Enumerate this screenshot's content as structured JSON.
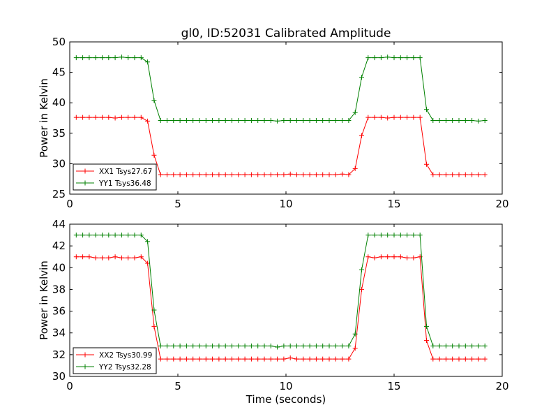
{
  "figure": {
    "title": "gl0, ID:52031 Calibrated Amplitude",
    "xlabel": "Time (seconds)"
  },
  "chart_data": [
    {
      "type": "line",
      "title": "gl0, ID:52031 Calibrated Amplitude",
      "xlabel": "",
      "ylabel": "Power in Kelvin",
      "xlim": [
        0,
        20
      ],
      "ylim": [
        25,
        50
      ],
      "xticks": [
        0,
        5,
        10,
        15,
        20
      ],
      "yticks": [
        25,
        30,
        35,
        40,
        45,
        50
      ],
      "grid": false,
      "legend_position": "lower-left",
      "series": [
        {
          "name": "XX1 Tsys27.67",
          "color": "#ff0000",
          "x": [
            0.3,
            0.6,
            0.9,
            1.2,
            1.5,
            1.8,
            2.1,
            2.4,
            2.7,
            3.0,
            3.3,
            3.6,
            3.9,
            4.2,
            4.5,
            4.8,
            5.1,
            5.4,
            5.7,
            6.0,
            6.3,
            6.6,
            6.9,
            7.2,
            7.5,
            7.8,
            8.1,
            8.4,
            8.7,
            9.0,
            9.3,
            9.6,
            9.9,
            10.2,
            10.5,
            10.8,
            11.1,
            11.4,
            11.7,
            12.0,
            12.3,
            12.6,
            12.9,
            13.2,
            13.5,
            13.8,
            14.1,
            14.4,
            14.7,
            15.0,
            15.3,
            15.6,
            15.9,
            16.2,
            16.5,
            16.8,
            17.1,
            17.4,
            17.7,
            18.0,
            18.3,
            18.6,
            18.9,
            19.2
          ],
          "y": [
            37.6,
            37.6,
            37.6,
            37.6,
            37.6,
            37.6,
            37.5,
            37.6,
            37.6,
            37.6,
            37.6,
            37.0,
            31.4,
            28.2,
            28.2,
            28.2,
            28.2,
            28.2,
            28.2,
            28.2,
            28.2,
            28.2,
            28.2,
            28.2,
            28.2,
            28.2,
            28.2,
            28.2,
            28.2,
            28.2,
            28.2,
            28.2,
            28.2,
            28.3,
            28.2,
            28.2,
            28.2,
            28.2,
            28.2,
            28.2,
            28.2,
            28.3,
            28.2,
            29.2,
            34.6,
            37.6,
            37.6,
            37.6,
            37.5,
            37.6,
            37.6,
            37.6,
            37.6,
            37.6,
            29.9,
            28.2,
            28.2,
            28.2,
            28.2,
            28.2,
            28.2,
            28.2,
            28.2,
            28.2
          ]
        },
        {
          "name": "YY1 Tsys36.48",
          "color": "#008000",
          "x": [
            0.3,
            0.6,
            0.9,
            1.2,
            1.5,
            1.8,
            2.1,
            2.4,
            2.7,
            3.0,
            3.3,
            3.6,
            3.9,
            4.2,
            4.5,
            4.8,
            5.1,
            5.4,
            5.7,
            6.0,
            6.3,
            6.6,
            6.9,
            7.2,
            7.5,
            7.8,
            8.1,
            8.4,
            8.7,
            9.0,
            9.3,
            9.6,
            9.9,
            10.2,
            10.5,
            10.8,
            11.1,
            11.4,
            11.7,
            12.0,
            12.3,
            12.6,
            12.9,
            13.2,
            13.5,
            13.8,
            14.1,
            14.4,
            14.7,
            15.0,
            15.3,
            15.6,
            15.9,
            16.2,
            16.5,
            16.8,
            17.1,
            17.4,
            17.7,
            18.0,
            18.3,
            18.6,
            18.9,
            19.2
          ],
          "y": [
            47.4,
            47.4,
            47.4,
            47.4,
            47.4,
            47.4,
            47.4,
            47.5,
            47.4,
            47.4,
            47.4,
            46.7,
            40.4,
            37.1,
            37.1,
            37.1,
            37.1,
            37.1,
            37.1,
            37.1,
            37.1,
            37.1,
            37.1,
            37.1,
            37.1,
            37.1,
            37.1,
            37.1,
            37.1,
            37.1,
            37.1,
            37.0,
            37.1,
            37.1,
            37.1,
            37.1,
            37.1,
            37.1,
            37.1,
            37.1,
            37.1,
            37.1,
            37.1,
            38.4,
            44.2,
            47.4,
            47.4,
            47.4,
            47.5,
            47.4,
            47.4,
            47.4,
            47.4,
            47.4,
            38.9,
            37.1,
            37.1,
            37.1,
            37.1,
            37.1,
            37.1,
            37.1,
            37.0,
            37.1
          ]
        }
      ]
    },
    {
      "type": "line",
      "title": "",
      "xlabel": "Time (seconds)",
      "ylabel": "Power in Kelvin",
      "xlim": [
        0,
        20
      ],
      "ylim": [
        30,
        44
      ],
      "xticks": [
        0,
        5,
        10,
        15,
        20
      ],
      "yticks": [
        30,
        32,
        34,
        36,
        38,
        40,
        42,
        44
      ],
      "grid": false,
      "legend_position": "lower-left",
      "series": [
        {
          "name": "XX2 Tsys30.99",
          "color": "#ff0000",
          "x": [
            0.3,
            0.6,
            0.9,
            1.2,
            1.5,
            1.8,
            2.1,
            2.4,
            2.7,
            3.0,
            3.3,
            3.6,
            3.9,
            4.2,
            4.5,
            4.8,
            5.1,
            5.4,
            5.7,
            6.0,
            6.3,
            6.6,
            6.9,
            7.2,
            7.5,
            7.8,
            8.1,
            8.4,
            8.7,
            9.0,
            9.3,
            9.6,
            9.9,
            10.2,
            10.5,
            10.8,
            11.1,
            11.4,
            11.7,
            12.0,
            12.3,
            12.6,
            12.9,
            13.2,
            13.5,
            13.8,
            14.1,
            14.4,
            14.7,
            15.0,
            15.3,
            15.6,
            15.9,
            16.2,
            16.5,
            16.8,
            17.1,
            17.4,
            17.7,
            18.0,
            18.3,
            18.6,
            18.9,
            19.2
          ],
          "y": [
            41.0,
            41.0,
            41.0,
            40.9,
            40.9,
            40.9,
            41.0,
            40.9,
            40.9,
            40.9,
            41.0,
            40.4,
            34.6,
            31.6,
            31.6,
            31.6,
            31.6,
            31.6,
            31.6,
            31.6,
            31.6,
            31.6,
            31.6,
            31.6,
            31.6,
            31.6,
            31.6,
            31.6,
            31.6,
            31.6,
            31.6,
            31.6,
            31.6,
            31.7,
            31.6,
            31.6,
            31.6,
            31.6,
            31.6,
            31.6,
            31.6,
            31.6,
            31.6,
            32.6,
            38.0,
            41.0,
            40.9,
            41.0,
            41.0,
            41.0,
            41.0,
            40.9,
            40.9,
            41.0,
            33.3,
            31.6,
            31.6,
            31.6,
            31.6,
            31.6,
            31.6,
            31.6,
            31.6,
            31.6
          ]
        },
        {
          "name": "YY2 Tsys32.28",
          "color": "#008000",
          "x": [
            0.3,
            0.6,
            0.9,
            1.2,
            1.5,
            1.8,
            2.1,
            2.4,
            2.7,
            3.0,
            3.3,
            3.6,
            3.9,
            4.2,
            4.5,
            4.8,
            5.1,
            5.4,
            5.7,
            6.0,
            6.3,
            6.6,
            6.9,
            7.2,
            7.5,
            7.8,
            8.1,
            8.4,
            8.7,
            9.0,
            9.3,
            9.6,
            9.9,
            10.2,
            10.5,
            10.8,
            11.1,
            11.4,
            11.7,
            12.0,
            12.3,
            12.6,
            12.9,
            13.2,
            13.5,
            13.8,
            14.1,
            14.4,
            14.7,
            15.0,
            15.3,
            15.6,
            15.9,
            16.2,
            16.5,
            16.8,
            17.1,
            17.4,
            17.7,
            18.0,
            18.3,
            18.6,
            18.9,
            19.2
          ],
          "y": [
            43.0,
            43.0,
            43.0,
            43.0,
            43.0,
            43.0,
            43.0,
            43.0,
            43.0,
            43.0,
            43.0,
            42.4,
            36.1,
            32.8,
            32.8,
            32.8,
            32.8,
            32.8,
            32.8,
            32.8,
            32.8,
            32.8,
            32.8,
            32.8,
            32.8,
            32.8,
            32.8,
            32.8,
            32.8,
            32.8,
            32.8,
            32.7,
            32.8,
            32.8,
            32.8,
            32.8,
            32.8,
            32.8,
            32.8,
            32.8,
            32.8,
            32.8,
            32.8,
            33.9,
            39.8,
            43.0,
            43.0,
            43.0,
            43.0,
            43.0,
            43.0,
            43.0,
            43.0,
            43.0,
            34.6,
            32.8,
            32.8,
            32.8,
            32.8,
            32.8,
            32.8,
            32.8,
            32.8,
            32.8
          ]
        }
      ]
    }
  ]
}
